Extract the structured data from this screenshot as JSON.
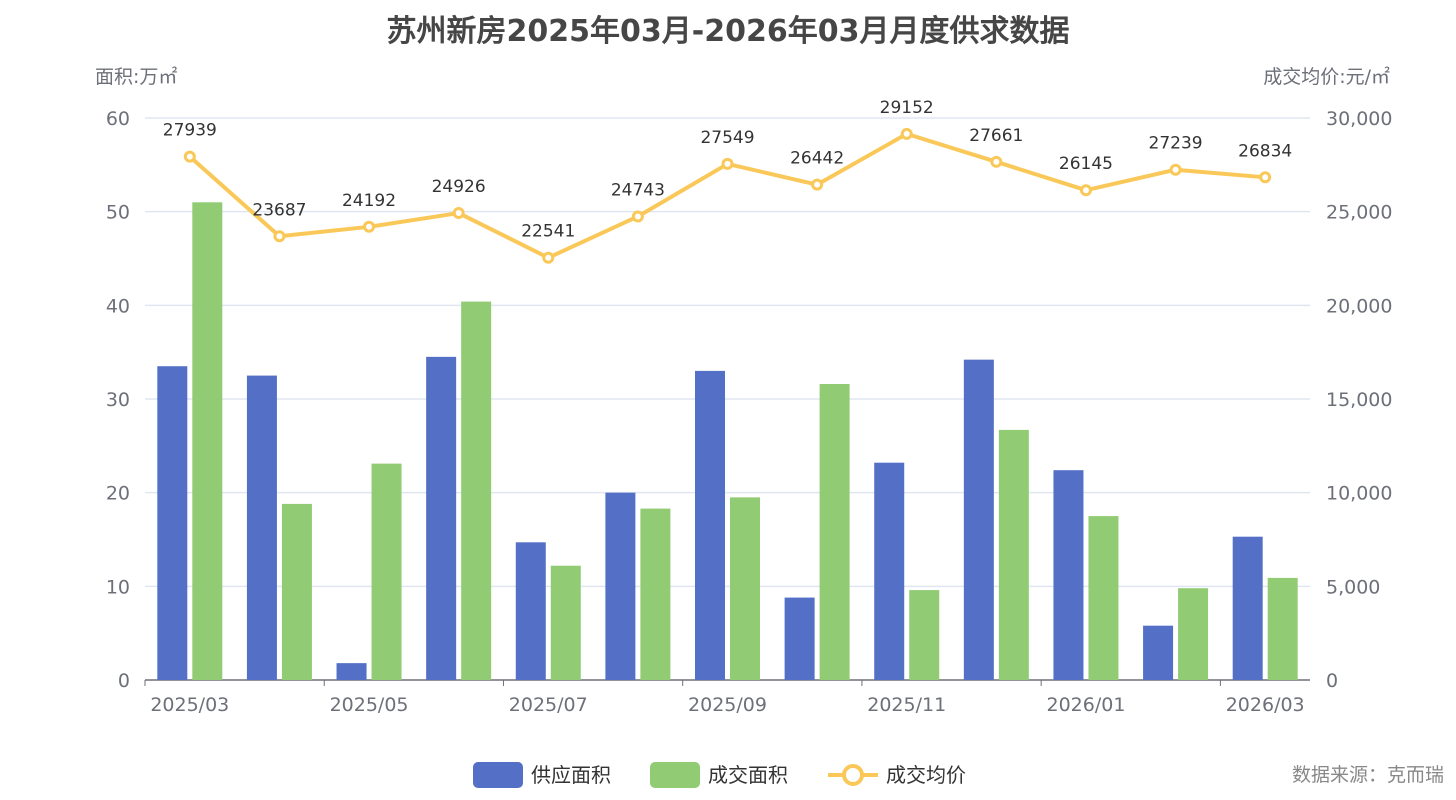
{
  "chart_data": {
    "type": "bar",
    "title": "苏州新房2025年03月-2026年03月月度供求数据",
    "ylabel_left": "面积:万㎡",
    "ylabel_right": "成交均价:元/㎡",
    "categories": [
      "2025/03",
      "2025/04",
      "2025/05",
      "2025/06",
      "2025/07",
      "2025/08",
      "2025/09",
      "2025/10",
      "2025/11",
      "2025/12",
      "2026/01",
      "2026/02",
      "2026/03"
    ],
    "visible_x_ticks": [
      "2025/03",
      "2025/05",
      "2025/07",
      "2025/09",
      "2025/11",
      "2026/01",
      "2026/03"
    ],
    "ylim_left": [
      0,
      60
    ],
    "yticks_left": [
      "0",
      "10",
      "20",
      "30",
      "40",
      "50",
      "60"
    ],
    "ylim_right": [
      0,
      30000
    ],
    "yticks_right": [
      "0",
      "5,000",
      "10,000",
      "15,000",
      "20,000",
      "25,000",
      "30,000"
    ],
    "grid": true,
    "legend_position": "bottom",
    "series": [
      {
        "name": "供应面积",
        "type": "bar",
        "axis": "left",
        "color": "#5470c6",
        "values": [
          33.5,
          32.5,
          1.8,
          34.5,
          14.7,
          20.0,
          33.0,
          8.8,
          23.2,
          34.2,
          22.4,
          5.8,
          15.3
        ]
      },
      {
        "name": "成交面积",
        "type": "bar",
        "axis": "left",
        "color": "#91cc75",
        "values": [
          51.0,
          18.8,
          23.1,
          40.4,
          12.2,
          18.3,
          19.5,
          31.6,
          9.6,
          26.7,
          17.5,
          9.8,
          10.9
        ]
      },
      {
        "name": "成交均价",
        "type": "line",
        "axis": "right",
        "color": "#fac858",
        "values": [
          27939,
          23687,
          24192,
          24926,
          22541,
          24743,
          27549,
          26442,
          29152,
          27661,
          26145,
          27239,
          26834
        ]
      }
    ]
  },
  "source": "数据来源：克而瑞"
}
